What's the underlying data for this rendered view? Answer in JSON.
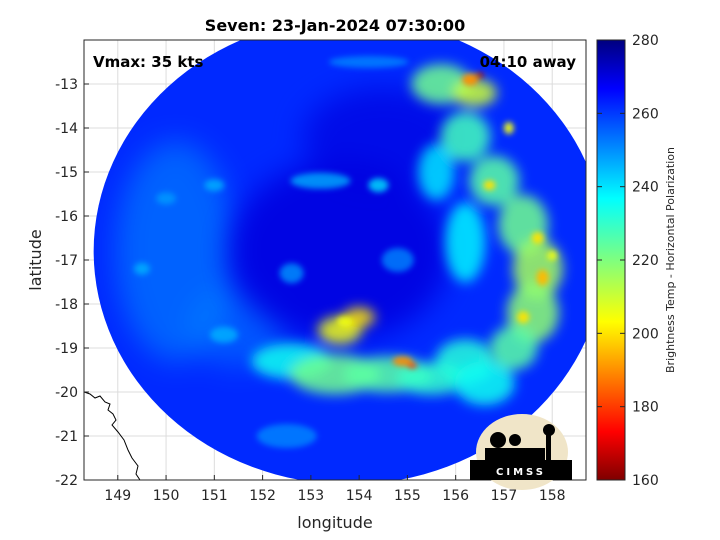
{
  "title": "Seven: 23-Jan-2024 07:30:00",
  "overlay": {
    "vmax": "Vmax: 35 kts",
    "away": "04:10 away"
  },
  "logo": {
    "text": "CIMSS"
  },
  "chart_data": {
    "type": "heatmap",
    "xlabel": "longitude",
    "ylabel": "latitude",
    "xlim": [
      148.3,
      158.7
    ],
    "ylim": [
      -22,
      -12
    ],
    "xticks": [
      149,
      150,
      151,
      152,
      153,
      154,
      155,
      156,
      157,
      158
    ],
    "yticks": [
      -13,
      -14,
      -15,
      -16,
      -17,
      -18,
      -19,
      -20,
      -21,
      -22
    ],
    "grid": true,
    "colorbar": {
      "label": "Brightness Temp - Horizontal Polarization",
      "range": [
        160,
        280
      ],
      "ticks": [
        280,
        260,
        240,
        220,
        200,
        180,
        160
      ],
      "colormap": "jet"
    },
    "swath": {
      "center": [
        153.8,
        -16.8
      ],
      "radius_lon": 5.3,
      "radius_lat": 5.3
    },
    "field_regions": [
      {
        "feature": "background",
        "value": 262
      },
      {
        "feature": "eye-dark-core",
        "center": [
          153.6,
          -16.8
        ],
        "value": 270
      },
      {
        "feature": "eastern-rainband",
        "value": 215
      },
      {
        "feature": "southern-rainband",
        "value": 225
      },
      {
        "feature": "western-haze",
        "value": 250
      }
    ]
  }
}
